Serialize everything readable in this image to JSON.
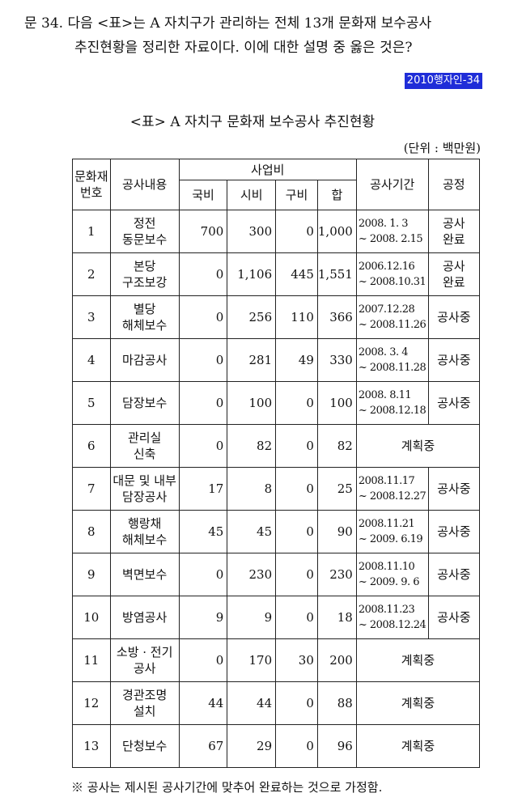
{
  "question": {
    "line1": "문 34. 다음 <표>는 A 자치구가 관리하는 전체 13개 문화재 보수공사",
    "line2": "추진현황을 정리한 자료이다. 이에 대한 설명 중 옳은 것은?"
  },
  "source_tag": "2010행자인-34",
  "table": {
    "title": "<표> A 자치구 문화재 보수공사 추진현황",
    "unit": "(단위 : 백만원)",
    "headers": {
      "no_l1": "문화재",
      "no_l2": "번호",
      "content": "공사내용",
      "budget": "사업비",
      "national": "국비",
      "city": "시비",
      "district": "구비",
      "sum": "합",
      "period": "공사기간",
      "status": "공정"
    },
    "rows": [
      {
        "no": "1",
        "c1": "정전",
        "c2": "동문보수",
        "national": "700",
        "city": "300",
        "district": "0",
        "sum": "1,000",
        "p1": "2008. 1. 3",
        "p2": "~ 2008. 2.15",
        "s1": "공사",
        "s2": "완료"
      },
      {
        "no": "2",
        "c1": "본당",
        "c2": "구조보강",
        "national": "0",
        "city": "1,106",
        "district": "445",
        "sum": "1,551",
        "p1": "2006.12.16",
        "p2": "~ 2008.10.31",
        "s1": "공사",
        "s2": "완료"
      },
      {
        "no": "3",
        "c1": "별당",
        "c2": "해체보수",
        "national": "0",
        "city": "256",
        "district": "110",
        "sum": "366",
        "p1": "2007.12.28",
        "p2": "~ 2008.11.26",
        "s1": "공사중",
        "s2": ""
      },
      {
        "no": "4",
        "c1": "마감공사",
        "c2": "",
        "national": "0",
        "city": "281",
        "district": "49",
        "sum": "330",
        "p1": "2008. 3. 4",
        "p2": "~ 2008.11.28",
        "s1": "공사중",
        "s2": ""
      },
      {
        "no": "5",
        "c1": "담장보수",
        "c2": "",
        "national": "0",
        "city": "100",
        "district": "0",
        "sum": "100",
        "p1": "2008. 8.11",
        "p2": "~ 2008.12.18",
        "s1": "공사중",
        "s2": ""
      },
      {
        "no": "6",
        "c1": "관리실",
        "c2": "신축",
        "national": "0",
        "city": "82",
        "district": "0",
        "sum": "82",
        "plan": "계획중"
      },
      {
        "no": "7",
        "c1": "대문 및 내부",
        "c2": "담장공사",
        "national": "17",
        "city": "8",
        "district": "0",
        "sum": "25",
        "p1": "2008.11.17",
        "p2": "~ 2008.12.27",
        "s1": "공사중",
        "s2": ""
      },
      {
        "no": "8",
        "c1": "행랑채",
        "c2": "해체보수",
        "national": "45",
        "city": "45",
        "district": "0",
        "sum": "90",
        "p1": "2008.11.21",
        "p2": "~ 2009. 6.19",
        "s1": "공사중",
        "s2": ""
      },
      {
        "no": "9",
        "c1": "벽면보수",
        "c2": "",
        "national": "0",
        "city": "230",
        "district": "0",
        "sum": "230",
        "p1": "2008.11.10",
        "p2": "~ 2009. 9. 6",
        "s1": "공사중",
        "s2": ""
      },
      {
        "no": "10",
        "c1": "방염공사",
        "c2": "",
        "national": "9",
        "city": "9",
        "district": "0",
        "sum": "18",
        "p1": "2008.11.23",
        "p2": "~ 2008.12.24",
        "s1": "공사중",
        "s2": ""
      },
      {
        "no": "11",
        "c1": "소방 · 전기",
        "c2": "공사",
        "national": "0",
        "city": "170",
        "district": "30",
        "sum": "200",
        "plan": "계획중"
      },
      {
        "no": "12",
        "c1": "경관조명",
        "c2": "설치",
        "national": "44",
        "city": "44",
        "district": "0",
        "sum": "88",
        "plan": "계획중"
      },
      {
        "no": "13",
        "c1": "단청보수",
        "c2": "",
        "national": "67",
        "city": "29",
        "district": "0",
        "sum": "96",
        "plan": "계획중"
      }
    ]
  },
  "footnote": "※  공사는 제시된 공사기간에 맞추어 완료하는 것으로 가정함."
}
